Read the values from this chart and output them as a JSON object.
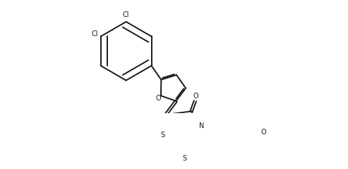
{
  "background_color": "#ffffff",
  "line_color": "#1a1a1a",
  "line_width": 1.4,
  "figsize": [
    4.93,
    2.39
  ],
  "dpi": 100,
  "xlim": [
    0,
    493
  ],
  "ylim": [
    0,
    239
  ]
}
